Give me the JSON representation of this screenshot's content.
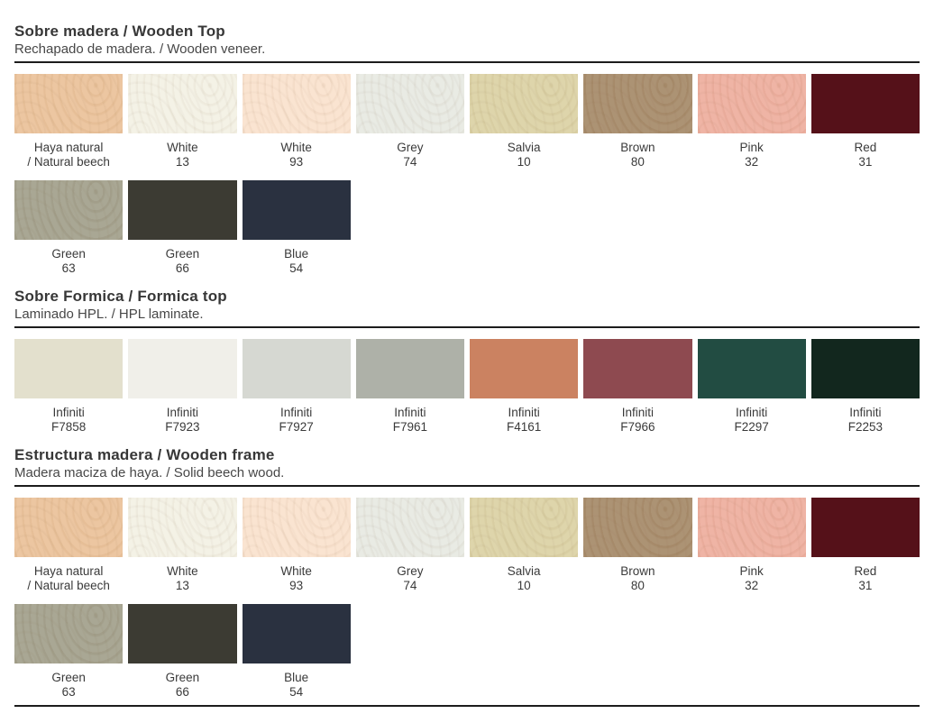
{
  "page": {
    "background": "#ffffff",
    "rule_color": "#1c1c1c",
    "title_color": "#373737",
    "subtitle_color": "#474747",
    "label_color": "#3a3a3a"
  },
  "sections": [
    {
      "title": "Sobre madera / Wooden Top",
      "subtitle": "Rechapado de madera. / Wooden veneer.",
      "swatches": [
        {
          "name": "Haya natural",
          "code": "/ Natural beech",
          "color": "#ebc39c",
          "finish": "wood"
        },
        {
          "name": "White",
          "code": "13",
          "color": "#f3f1e5",
          "finish": "wood"
        },
        {
          "name": "White",
          "code": "93",
          "color": "#fae3cf",
          "finish": "wood"
        },
        {
          "name": "Grey",
          "code": "74",
          "color": "#e8eae3",
          "finish": "wood"
        },
        {
          "name": "Salvia",
          "code": "10",
          "color": "#dcd3a7",
          "finish": "wood"
        },
        {
          "name": "Brown",
          "code": "80",
          "color": "#a88d6d",
          "finish": "wood"
        },
        {
          "name": "Pink",
          "code": "32",
          "color": "#eeb0a0",
          "finish": "wood"
        },
        {
          "name": "Red",
          "code": "31",
          "color": "#551119",
          "finish": "flat"
        },
        {
          "name": "Green",
          "code": "63",
          "color": "#a4a28e",
          "finish": "wood"
        },
        {
          "name": "Green",
          "code": "66",
          "color": "#3c3b33",
          "finish": "flat"
        },
        {
          "name": "Blue",
          "code": "54",
          "color": "#2a3140",
          "finish": "flat"
        }
      ]
    },
    {
      "title": "Sobre Formica / Formica top",
      "subtitle": "Laminado HPL. / HPL laminate.",
      "swatches": [
        {
          "name": "Infiniti",
          "code": "F7858",
          "color": "#e3e0cd",
          "finish": "flat"
        },
        {
          "name": "Infiniti",
          "code": "F7923",
          "color": "#f0efe9",
          "finish": "flat"
        },
        {
          "name": "Infiniti",
          "code": "F7927",
          "color": "#d6d8d2",
          "finish": "flat"
        },
        {
          "name": "Infiniti",
          "code": "F7961",
          "color": "#aeb1a8",
          "finish": "flat"
        },
        {
          "name": "Infiniti",
          "code": "F4161",
          "color": "#cb8261",
          "finish": "flat"
        },
        {
          "name": "Infiniti",
          "code": "F7966",
          "color": "#8e4a50",
          "finish": "flat"
        },
        {
          "name": "Infiniti",
          "code": "F2297",
          "color": "#224c42",
          "finish": "flat"
        },
        {
          "name": "Infiniti",
          "code": "F2253",
          "color": "#12271e",
          "finish": "flat"
        }
      ]
    },
    {
      "title": "Estructura madera / Wooden frame",
      "subtitle": "Madera maciza de haya. / Solid beech wood.",
      "swatches": [
        {
          "name": "Haya natural",
          "code": "/ Natural beech",
          "color": "#ebc39c",
          "finish": "wood"
        },
        {
          "name": "White",
          "code": "13",
          "color": "#f3f1e5",
          "finish": "wood"
        },
        {
          "name": "White",
          "code": "93",
          "color": "#fae3cf",
          "finish": "wood"
        },
        {
          "name": "Grey",
          "code": "74",
          "color": "#e8eae3",
          "finish": "wood"
        },
        {
          "name": "Salvia",
          "code": "10",
          "color": "#dcd3a7",
          "finish": "wood"
        },
        {
          "name": "Brown",
          "code": "80",
          "color": "#a88d6d",
          "finish": "wood"
        },
        {
          "name": "Pink",
          "code": "32",
          "color": "#eeb0a0",
          "finish": "wood"
        },
        {
          "name": "Red",
          "code": "31",
          "color": "#551119",
          "finish": "flat"
        },
        {
          "name": "Green",
          "code": "63",
          "color": "#a4a28e",
          "finish": "wood"
        },
        {
          "name": "Green",
          "code": "66",
          "color": "#3c3b33",
          "finish": "flat"
        },
        {
          "name": "Blue",
          "code": "54",
          "color": "#2a3140",
          "finish": "flat"
        }
      ]
    }
  ]
}
